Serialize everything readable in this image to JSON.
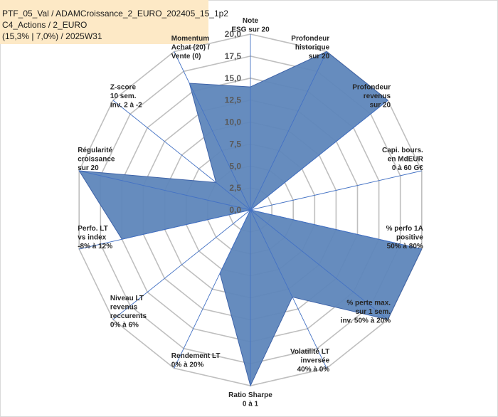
{
  "header": {
    "line1": "PTF_05_Val / ADAMCroissance_2_EURO_202405_15_1p2",
    "line2": "C4_Actions / 2_EURO",
    "line3": "(15,3% | 7,0%) / 2025W31"
  },
  "chart_data": {
    "type": "radar",
    "title": "",
    "ylim": [
      0,
      20
    ],
    "rings": 8,
    "tick_labels": [
      "0,0",
      "2,5",
      "5,0",
      "7,5",
      "10,0",
      "12,5",
      "15,0",
      "17,5",
      "20,0"
    ],
    "grid": true,
    "legend": "none",
    "colors": {
      "fill": "#5e86bb",
      "stroke": "#3e63a8",
      "grid": "#bfbfbf",
      "spoke": "#4472c4",
      "highlight_label": "#c9a867",
      "header_bg": "#fde9c6"
    },
    "categories": [
      [
        "Note",
        "ESG sur 20"
      ],
      [
        "Profondeur",
        "historique",
        "sur 20"
      ],
      [
        "Profondeur",
        "revenus",
        "sur 20"
      ],
      [
        "Capi. bours.",
        "en MdEUR",
        "0 à 60 G€"
      ],
      [
        "% perfo 1A",
        "positive",
        "50% à 80%"
      ],
      [
        "% perte max.",
        "sur 1 sem.",
        "inv. 50% à 20%"
      ],
      [
        "Volatilité LT",
        "inversée",
        "40% à 0%"
      ],
      [
        "Ratio Sharpe",
        "0 à 1"
      ],
      [
        "Rendement LT",
        "0% à 20%"
      ],
      [
        "Niveau LT",
        "revenus",
        "reccurents",
        "0% à 6%"
      ],
      [
        "Perfo. LT",
        "vs index",
        "-8% à 12%"
      ],
      [
        "Régularité",
        "croissance",
        "sur 20"
      ],
      [
        "Z-score",
        "10 sem.",
        "inv. 2 à -2"
      ],
      [
        "Momentum",
        "Achat (20) /",
        "Vente (0)"
      ]
    ],
    "values": [
      14,
      20,
      20,
      0,
      20,
      20,
      11,
      20,
      8,
      0,
      15,
      20,
      5,
      16
    ]
  }
}
